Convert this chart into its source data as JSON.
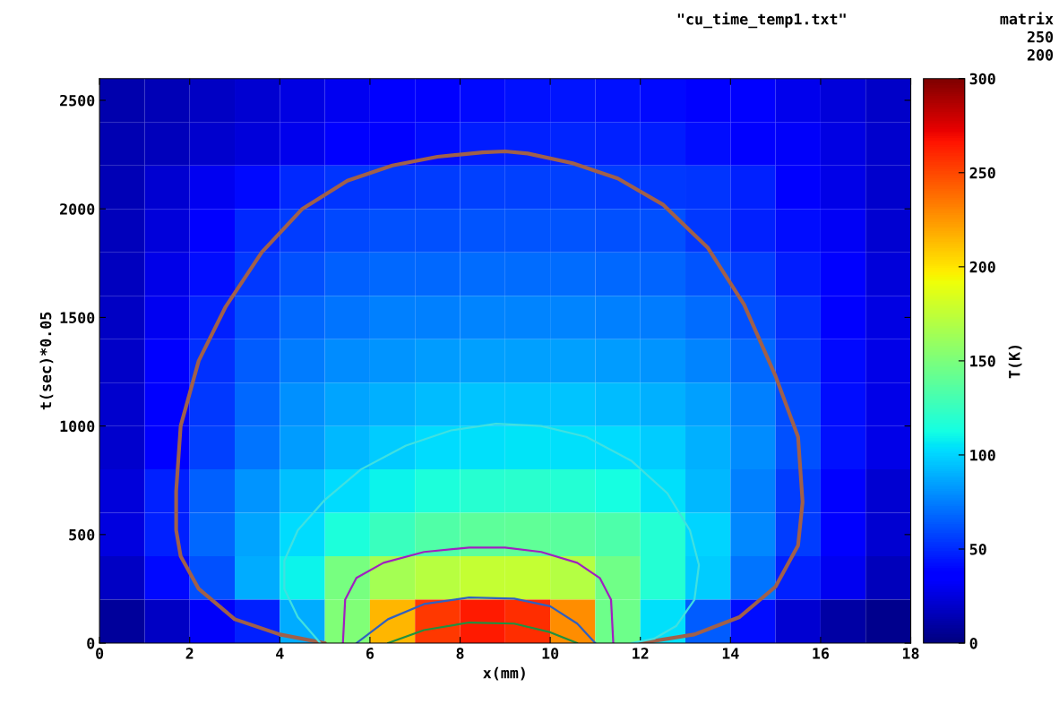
{
  "chart_data": {
    "type": "heatmap",
    "xlabel": "x(mm)",
    "ylabel": "t(sec)*0.05",
    "clabel": "T(K)",
    "annotations": [
      "\"cu_time_temp1.txt\"",
      "matrix",
      "250",
      "200"
    ],
    "cells": [
      [
        12,
        15,
        18,
        22,
        26,
        30,
        34,
        38,
        41,
        43,
        44,
        43,
        41,
        38,
        34,
        29,
        24,
        19
      ],
      [
        13,
        16,
        20,
        24,
        29,
        33,
        38,
        42,
        46,
        48,
        49,
        48,
        46,
        42,
        37,
        32,
        26,
        20
      ],
      [
        15,
        22,
        30,
        40,
        50,
        53,
        55,
        56,
        57,
        57,
        57,
        56,
        55,
        53,
        47,
        38,
        28,
        20
      ],
      [
        16,
        24,
        35,
        50,
        56,
        59,
        61,
        62,
        63,
        63,
        63,
        62,
        61,
        55,
        48,
        42,
        31,
        22
      ],
      [
        17,
        27,
        42,
        55,
        62,
        66,
        68,
        69,
        70,
        70,
        70,
        69,
        67,
        63,
        56,
        46,
        34,
        24
      ],
      [
        18,
        30,
        48,
        60,
        68,
        72,
        75,
        76,
        77,
        77,
        77,
        76,
        74,
        70,
        62,
        52,
        38,
        26
      ],
      [
        19,
        33,
        52,
        65,
        74,
        79,
        82,
        84,
        85,
        85,
        85,
        84,
        81,
        77,
        68,
        56,
        40,
        27
      ],
      [
        20,
        35,
        55,
        69,
        80,
        86,
        90,
        93,
        95,
        95,
        95,
        93,
        90,
        85,
        75,
        60,
        42,
        28
      ],
      [
        20,
        37,
        57,
        72,
        84,
        92,
        98,
        102,
        104,
        105,
        104,
        102,
        98,
        90,
        79,
        62,
        43,
        28
      ],
      [
        24,
        47,
        66,
        82,
        94,
        102,
        110,
        116,
        119,
        120,
        118,
        113,
        104,
        92,
        76,
        56,
        36,
        22
      ],
      [
        25,
        48,
        68,
        86,
        102,
        116,
        126,
        134,
        139,
        140,
        138,
        133,
        118,
        100,
        78,
        56,
        36,
        22
      ],
      [
        18,
        40,
        62,
        88,
        110,
        148,
        165,
        172,
        176,
        176,
        170,
        146,
        118,
        98,
        72,
        48,
        30,
        16
      ],
      [
        8,
        18,
        32,
        48,
        88,
        152,
        215,
        255,
        264,
        258,
        228,
        145,
        104,
        65,
        42,
        22,
        10,
        4
      ]
    ],
    "clim": [
      0,
      300
    ],
    "cticks": [
      0,
      50,
      100,
      150,
      200,
      250,
      300
    ],
    "xlim": [
      0,
      18
    ],
    "xticks": [
      0,
      2,
      4,
      6,
      8,
      10,
      12,
      14,
      16,
      18
    ],
    "ylim": [
      0,
      2600
    ],
    "yticks": [
      0,
      500,
      1000,
      1500,
      2000,
      2500
    ],
    "grid": false,
    "series": [
      {
        "type": "line",
        "color": "#a0604a",
        "x": [
          5.0,
          4.0,
          3.0,
          2.2,
          1.8,
          1.7,
          1.7,
          1.8,
          2.2,
          2.8,
          3.6,
          4.5,
          5.5,
          6.5,
          7.5,
          8.5,
          9.0,
          9.5,
          10.5,
          11.5,
          12.5,
          13.5,
          14.3,
          15.0,
          15.5,
          15.6,
          15.5,
          15.0,
          14.2,
          13.2,
          12.0
        ],
        "values": [
          0,
          40,
          110,
          250,
          400,
          520,
          700,
          1000,
          1300,
          1550,
          1800,
          2000,
          2130,
          2200,
          2240,
          2260,
          2265,
          2255,
          2210,
          2140,
          2020,
          1820,
          1560,
          1230,
          950,
          650,
          450,
          260,
          120,
          40,
          0
        ]
      },
      {
        "type": "line",
        "color": "#40e0e0",
        "x": [
          4.9,
          4.4,
          4.1,
          4.1,
          4.4,
          5.0,
          5.8,
          6.8,
          7.8,
          8.8,
          9.8,
          10.8,
          11.8,
          12.6,
          13.1,
          13.3,
          13.2,
          12.8,
          12.3,
          11.8
        ],
        "values": [
          0,
          120,
          250,
          380,
          520,
          660,
          800,
          910,
          980,
          1010,
          1000,
          950,
          840,
          690,
          520,
          360,
          200,
          80,
          20,
          0
        ]
      },
      {
        "type": "line",
        "color": "#a020c0",
        "x": [
          5.4,
          5.45,
          5.7,
          6.3,
          7.2,
          8.2,
          9.0,
          9.8,
          10.6,
          11.1,
          11.35,
          11.4
        ],
        "values": [
          0,
          200,
          300,
          370,
          420,
          440,
          440,
          420,
          370,
          300,
          200,
          0
        ]
      },
      {
        "type": "line",
        "color": "#3060c0",
        "x": [
          5.7,
          6.4,
          7.2,
          8.2,
          9.2,
          10.0,
          10.6,
          11.0
        ],
        "values": [
          0,
          110,
          180,
          210,
          205,
          170,
          90,
          0
        ]
      },
      {
        "type": "line",
        "color": "#209040",
        "x": [
          6.4,
          7.2,
          8.2,
          9.2,
          10.0,
          10.6
        ],
        "values": [
          0,
          60,
          95,
          90,
          50,
          0
        ]
      }
    ]
  }
}
